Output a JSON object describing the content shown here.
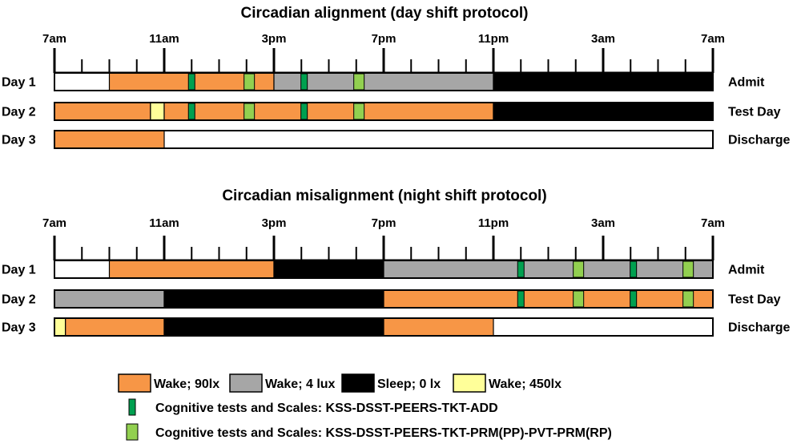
{
  "panels": [
    {
      "title": "Circadian  alignment  (day shift protocol)",
      "time_labels": [
        "7am",
        "11am",
        "3pm",
        "7pm",
        "11pm",
        "3am",
        "7am"
      ],
      "days": [
        {
          "label": "Day 1",
          "status": "Admit",
          "segments": [
            {
              "start": 2,
              "end": 8,
              "type": "wake_90"
            },
            {
              "start": 8,
              "end": 16,
              "type": "wake_4"
            },
            {
              "start": 16,
              "end": 24,
              "type": "sleep_0"
            }
          ],
          "markers": [
            {
              "time": 5,
              "type": "cog_dark"
            },
            {
              "time": 7.1,
              "type": "cog_light"
            },
            {
              "time": 9.1,
              "type": "cog_dark"
            },
            {
              "time": 11.1,
              "type": "cog_light"
            }
          ]
        },
        {
          "label": "Day 2",
          "status": "Test Day",
          "segments": [
            {
              "start": 0,
              "end": 3.5,
              "type": "wake_90"
            },
            {
              "start": 3.5,
              "end": 4,
              "type": "wake_450"
            },
            {
              "start": 4,
              "end": 16,
              "type": "wake_90"
            },
            {
              "start": 16,
              "end": 24,
              "type": "sleep_0"
            }
          ],
          "markers": [
            {
              "time": 5,
              "type": "cog_dark"
            },
            {
              "time": 7.1,
              "type": "cog_light"
            },
            {
              "time": 9.1,
              "type": "cog_dark"
            },
            {
              "time": 11.1,
              "type": "cog_light"
            }
          ]
        },
        {
          "label": "Day 3",
          "status": "Discharge",
          "segments": [
            {
              "start": 0,
              "end": 4,
              "type": "wake_90"
            }
          ],
          "markers": []
        }
      ]
    },
    {
      "title": "Circadian  misalignment  (night shift protocol)",
      "time_labels": [
        "7am",
        "11am",
        "3pm",
        "7pm",
        "11pm",
        "3am",
        "7am"
      ],
      "days": [
        {
          "label": "Day 1",
          "status": "Admit",
          "segments": [
            {
              "start": 2,
              "end": 8,
              "type": "wake_90"
            },
            {
              "start": 8,
              "end": 12,
              "type": "sleep_0"
            },
            {
              "start": 12,
              "end": 24,
              "type": "wake_4"
            }
          ],
          "markers": [
            {
              "time": 17,
              "type": "cog_dark"
            },
            {
              "time": 19.1,
              "type": "cog_light"
            },
            {
              "time": 21.1,
              "type": "cog_dark"
            },
            {
              "time": 23.1,
              "type": "cog_light"
            }
          ]
        },
        {
          "label": "Day 2",
          "status": "Test Day",
          "segments": [
            {
              "start": 0,
              "end": 4,
              "type": "wake_4"
            },
            {
              "start": 4,
              "end": 12,
              "type": "sleep_0"
            },
            {
              "start": 12,
              "end": 24,
              "type": "wake_90"
            }
          ],
          "markers": [
            {
              "time": 17,
              "type": "cog_dark"
            },
            {
              "time": 19.1,
              "type": "cog_light"
            },
            {
              "time": 21.1,
              "type": "cog_dark"
            },
            {
              "time": 23.1,
              "type": "cog_light"
            }
          ]
        },
        {
          "label": "Day 3",
          "status": "Discharge",
          "segments": [
            {
              "start": 0,
              "end": 0.4,
              "type": "wake_450"
            },
            {
              "start": 0.4,
              "end": 4,
              "type": "wake_90"
            },
            {
              "start": 4,
              "end": 12,
              "type": "sleep_0"
            },
            {
              "start": 12,
              "end": 16,
              "type": "wake_90"
            }
          ],
          "markers": []
        }
      ]
    }
  ],
  "legend": {
    "boxes": [
      {
        "type": "wake_90",
        "label": "Wake; 90lx"
      },
      {
        "type": "wake_4",
        "label": "Wake; 4 lux"
      },
      {
        "type": "sleep_0",
        "label": "Sleep; 0 lx"
      },
      {
        "type": "wake_450",
        "label": "Wake; 450lx"
      }
    ],
    "markers": [
      {
        "type": "cog_dark",
        "label": "Cognitive tests and Scales: KSS-DSST-PEERS-TKT-ADD"
      },
      {
        "type": "cog_light",
        "label": "Cognitive tests and Scales: KSS-DSST-PEERS-TKT-PRM(PP)-PVT-PRM(RP)"
      }
    ]
  },
  "colors": {
    "wake_90": "#F79646",
    "wake_4": "#A6A6A6",
    "sleep_0": "#000000",
    "wake_450": "#FFFF99",
    "cog_dark": "#00A050",
    "cog_light": "#92D050"
  }
}
